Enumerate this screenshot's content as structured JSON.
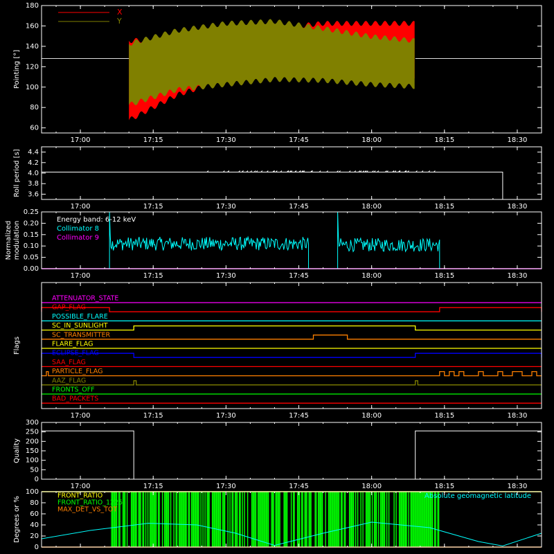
{
  "colors": {
    "background": "#000000",
    "axes": "#ffffff",
    "x_series": "#ff0000",
    "y_series": "#808000",
    "cyan": "#00ffff",
    "magenta": "#ff00ff",
    "green": "#00ff00",
    "yellow": "#ffff00",
    "orange": "#ff8000",
    "red": "#ff0000",
    "blue": "#0000ff",
    "olive": "#808000"
  },
  "chart_data": [
    {
      "type": "area",
      "id": "pointing",
      "ylabel": "Pointing [°]",
      "ylim": [
        55,
        180
      ],
      "yticks": [
        60,
        80,
        100,
        120,
        140,
        160,
        180
      ],
      "reference_line": 128,
      "time_ticks": [
        "17:00",
        "17:15",
        "17:30",
        "17:45",
        "18:00",
        "18:15",
        "18:30"
      ],
      "time_range": [
        "16:52",
        "18:35"
      ],
      "data_range": [
        "17:10",
        "18:09"
      ],
      "series": [
        {
          "name": "X",
          "color": "#ff0000",
          "t": [
            "17:10",
            "17:20",
            "17:30",
            "17:40",
            "17:50",
            "18:00",
            "18:09"
          ],
          "upper": [
            148,
            150,
            155,
            160,
            165,
            165,
            165
          ],
          "lower": [
            65,
            90,
            105,
            110,
            110,
            110,
            108
          ]
        },
        {
          "name": "Y",
          "color": "#808000",
          "t": [
            "17:10",
            "17:20",
            "17:30",
            "17:40",
            "17:50",
            "18:00",
            "18:09"
          ],
          "upper": [
            145,
            158,
            165,
            167,
            160,
            152,
            148
          ],
          "lower": [
            80,
            95,
            100,
            105,
            104,
            100,
            98
          ]
        }
      ]
    },
    {
      "type": "line",
      "id": "roll_period",
      "ylabel": "Roll period [s]",
      "ylim": [
        3.5,
        4.5
      ],
      "yticks": [
        3.6,
        3.8,
        4.0,
        4.2,
        4.4
      ],
      "points": [
        [
          "16:52",
          4.02
        ],
        [
          "18:27",
          4.02
        ],
        [
          "18:27",
          3.5
        ]
      ]
    },
    {
      "type": "line",
      "id": "modulation",
      "ylabel": "Normalized modulation",
      "ylim": [
        0,
        0.25
      ],
      "yticks": [
        0.0,
        0.05,
        0.1,
        0.15,
        0.2,
        0.25
      ],
      "annotations": [
        "Energy band: 6-12 keV",
        "Collimator 8",
        "Collimator 9"
      ],
      "series": [
        {
          "name": "Collimator 8",
          "color": "#00ffff",
          "segments": [
            {
              "start": "17:06",
              "end": "17:47",
              "spike": 0.25,
              "mean": 0.11
            },
            {
              "start": "17:53",
              "end": "18:14",
              "spike": 0.25,
              "mean": 0.105
            }
          ]
        },
        {
          "name": "Collimator 9",
          "color": "#ff00ff",
          "baseline": 0.0
        }
      ]
    },
    {
      "type": "line",
      "id": "flags",
      "ylabel": "Flags",
      "flags": [
        {
          "name": "ATTENUATOR_STATE",
          "color": "#ff00ff",
          "high": []
        },
        {
          "name": "GAP_FLAG",
          "color": "#ff0000",
          "high": [
            [
              "16:52",
              "17:06"
            ],
            [
              "18:14",
              "18:35"
            ]
          ]
        },
        {
          "name": "POSSIBLE_FLARE",
          "color": "#00ffff",
          "high": []
        },
        {
          "name": "SC_IN_SUNLIGHT",
          "color": "#ffff00",
          "high": [
            [
              "17:11",
              "18:09"
            ]
          ]
        },
        {
          "name": "SC_TRANSMITTER",
          "color": "#ff8000",
          "high": [
            [
              "17:48",
              "17:55"
            ]
          ]
        },
        {
          "name": "FLARE_FLAG",
          "color": "#ffff00",
          "high": []
        },
        {
          "name": "ECLIPSE_FLAG",
          "color": "#0000ff",
          "high": [
            [
              "16:52",
              "17:11"
            ],
            [
              "18:09",
              "18:35"
            ]
          ]
        },
        {
          "name": "SAA_FLAG",
          "color": "#ff0000",
          "high": []
        },
        {
          "name": "PARTICLE_FLAG",
          "color": "#ff8000",
          "high": [
            [
              "16:53",
              "16:53.4"
            ],
            [
              "18:14",
              "18:15"
            ],
            [
              "18:16",
              "18:17"
            ],
            [
              "18:18",
              "18:19"
            ],
            [
              "18:22",
              "18:23"
            ],
            [
              "18:26",
              "18:27"
            ],
            [
              "18:29",
              "18:31"
            ],
            [
              "18:33",
              "18:34"
            ]
          ]
        },
        {
          "name": "AAZ_FLAG",
          "color": "#808000",
          "high": [
            [
              "17:11",
              "17:11.5"
            ],
            [
              "18:09",
              "18:09.5"
            ]
          ]
        },
        {
          "name": "FRONTS_OFF",
          "color": "#00ff00",
          "high": []
        },
        {
          "name": "BAD_PACKETS",
          "color": "#ff0000",
          "high": []
        }
      ]
    },
    {
      "type": "line",
      "id": "quality",
      "ylabel": "Quality",
      "ylim": [
        0,
        300
      ],
      "yticks": [
        0,
        50,
        100,
        150,
        200,
        250,
        300
      ],
      "points": [
        [
          "16:52",
          255
        ],
        [
          "17:11",
          255
        ],
        [
          "17:11",
          0
        ],
        [
          "18:09",
          0
        ],
        [
          "18:09",
          255
        ],
        [
          "18:35",
          255
        ]
      ]
    },
    {
      "type": "line",
      "id": "degrees",
      "ylabel": "Degrees or %",
      "ylim": [
        0,
        100
      ],
      "yticks": [
        0,
        20,
        40,
        60,
        80,
        100
      ],
      "annotations": [
        "FRONT_RATIO",
        "FRONT_RATIO_1225",
        "MAX_DET_VS_TOT",
        "Absolute geomagnetic latitude"
      ],
      "series": [
        {
          "name": "FRONT_RATIO",
          "color": "#ffff00",
          "value": 100
        },
        {
          "name": "FRONT_RATIO_1225",
          "color": "#00ff00",
          "range": [
            "17:06",
            "18:14"
          ]
        },
        {
          "name": "MAX_DET_VS_TOT",
          "color": "#ff8000",
          "value": 0
        },
        {
          "name": "Absolute geomagnetic latitude",
          "color": "#00ffff",
          "points": [
            [
              "16:52",
              15
            ],
            [
              "17:02",
              30
            ],
            [
              "17:14",
              43
            ],
            [
              "17:24",
              40
            ],
            [
              "17:32",
              25
            ],
            [
              "17:40",
              3
            ],
            [
              "17:50",
              25
            ],
            [
              "18:00",
              45
            ],
            [
              "18:12",
              35
            ],
            [
              "18:22",
              10
            ],
            [
              "18:27",
              2
            ],
            [
              "18:35",
              25
            ]
          ]
        }
      ]
    }
  ]
}
